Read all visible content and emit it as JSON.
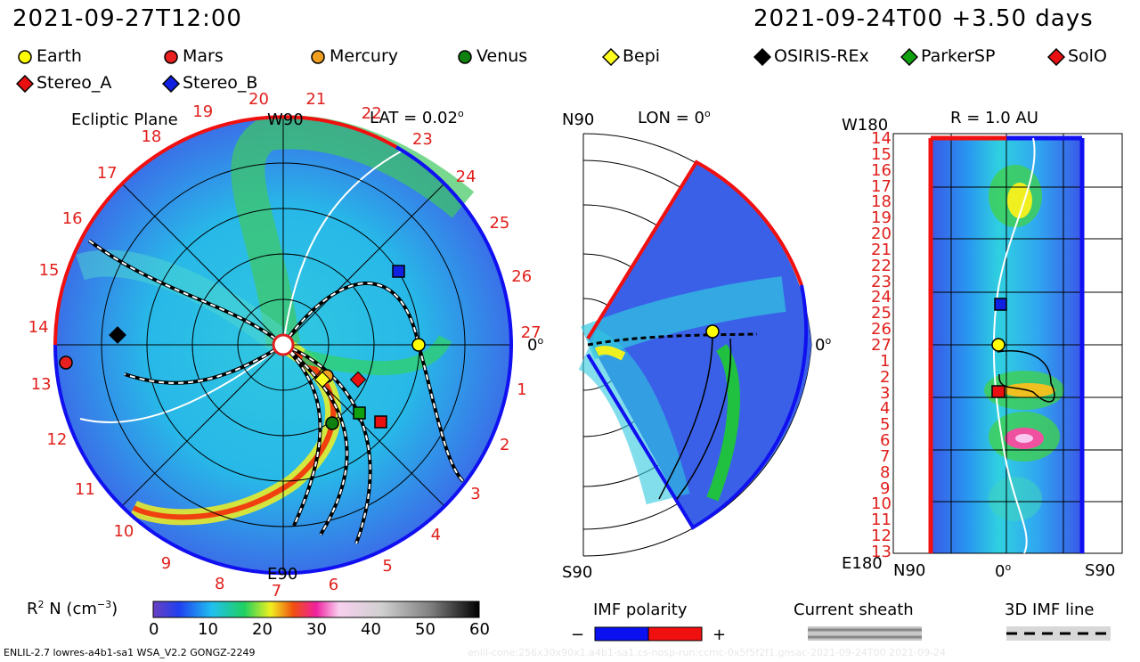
{
  "header": {
    "date_left": "2021-09-27T12:00",
    "date_right": "2021-09-24T00 +3.50 days"
  },
  "legend": [
    {
      "label": "Earth",
      "shape": "circle",
      "color": "#ffff00"
    },
    {
      "label": "Mars",
      "shape": "circle",
      "color": "#e82020"
    },
    {
      "label": "Mercury",
      "shape": "circle",
      "color": "#f0a020"
    },
    {
      "label": "Venus",
      "shape": "circle",
      "color": "#108010"
    },
    {
      "label": "Bepi",
      "shape": "diamond",
      "color": "#ffff20"
    },
    {
      "label": "OSIRIS-REx",
      "shape": "diamond",
      "color": "#000000"
    },
    {
      "label": "ParkerSP",
      "shape": "diamond",
      "color": "#10a010"
    },
    {
      "label": "SolO",
      "shape": "diamond",
      "color": "#e81010"
    },
    {
      "label": "Stereo_A",
      "shape": "diamond",
      "color": "#e81010"
    },
    {
      "label": "Stereo_B",
      "shape": "diamond",
      "color": "#1020e0"
    }
  ],
  "panel_ecliptic": {
    "title": "Ecliptic Plane",
    "top_label": "W90",
    "bottom_label": "E90",
    "lat_label": "LAT = 0.02",
    "right_label": "0",
    "carrington_numbers": [
      "20",
      "21",
      "22",
      "23",
      "24",
      "25",
      "26",
      "27",
      "1",
      "2",
      "3",
      "4",
      "5",
      "6",
      "7",
      "8",
      "9",
      "10",
      "11",
      "12",
      "13",
      "14",
      "15",
      "16",
      "17",
      "18",
      "19"
    ]
  },
  "panel_meridional": {
    "top_left": "N90",
    "top_mid": "LON = 0",
    "bottom_left": "S90",
    "right_label": "0"
  },
  "panel_radial": {
    "top_left": "W180",
    "top_mid": "R = 1.0 AU",
    "bottom_left": "E180",
    "bottom_n": "N90",
    "bottom_0": "0",
    "bottom_s": "S90",
    "rows": [
      "14",
      "15",
      "16",
      "17",
      "18",
      "19",
      "20",
      "21",
      "22",
      "23",
      "24",
      "25",
      "26",
      "27",
      "1",
      "2",
      "3",
      "4",
      "5",
      "6",
      "7",
      "8",
      "9",
      "10",
      "11",
      "12",
      "13"
    ]
  },
  "colorbar": {
    "label": "R",
    "label_suffix": " N (cm",
    "label_end": ")",
    "ticks": [
      "0",
      "10",
      "20",
      "30",
      "40",
      "50",
      "60"
    ]
  },
  "imf": {
    "title": "IMF polarity",
    "minus": "−",
    "plus": "+",
    "minus_color": "#0a10f0",
    "plus_color": "#f01010"
  },
  "current_sheath": {
    "title": "Current sheath"
  },
  "imf_line": {
    "title": "3D IMF line"
  },
  "footer": {
    "model": "ENLIL-2.7 lowres-a4b1-sa1 WSA_V2.2 GONGZ-2249",
    "faint": "enlil-cone:256x30x90x1.a4b1-sa1.cs-nosp-run:ccmc-0x5f5f2f1.gnsac-2021-09-24T00   2021-09-24"
  }
}
